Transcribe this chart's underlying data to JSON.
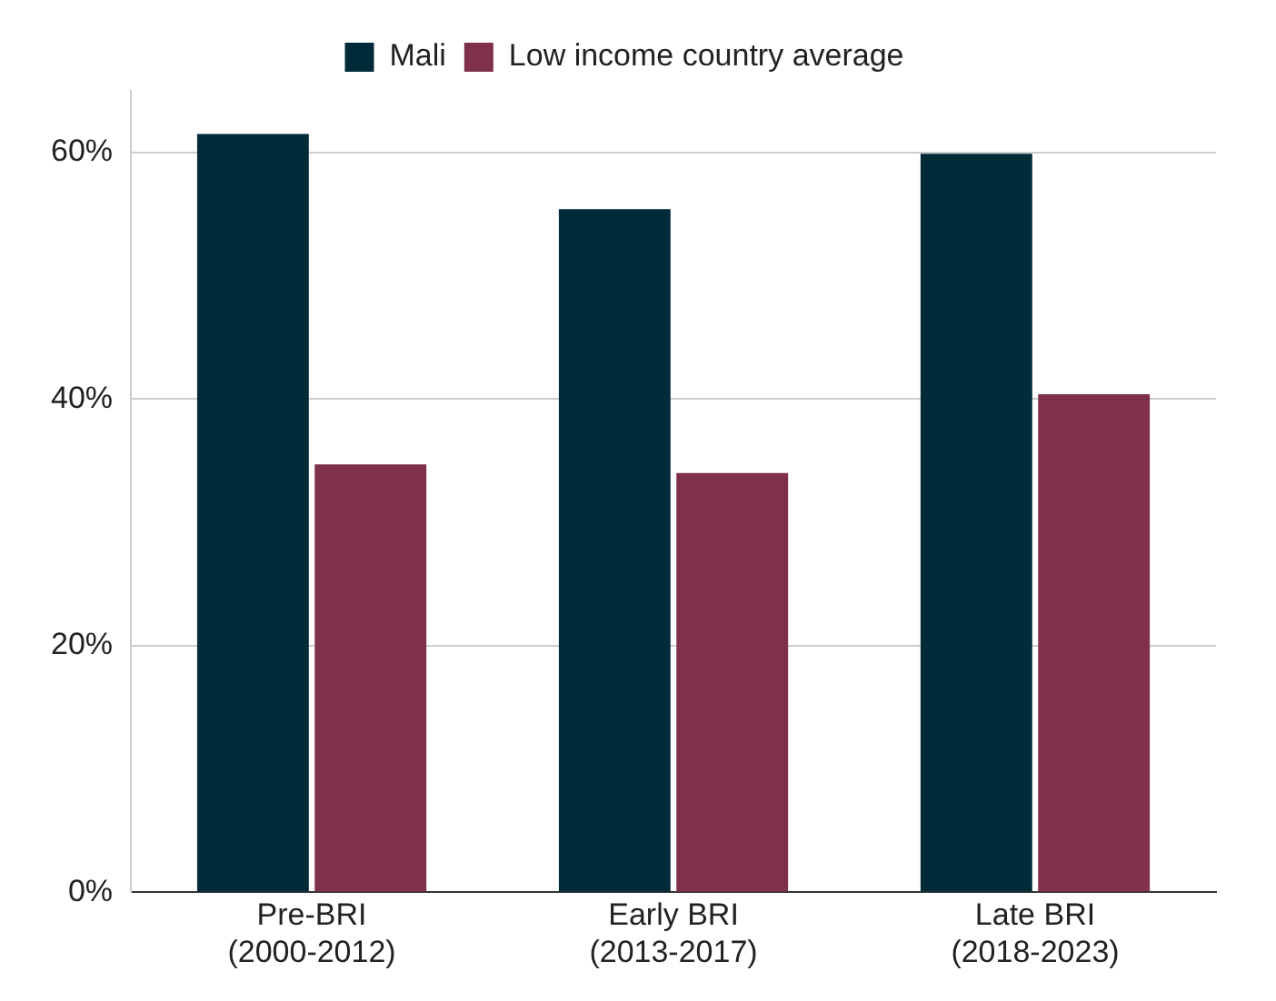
{
  "chart_data": {
    "type": "bar",
    "categories": [
      "Pre-BRI\n(2000-2012)",
      "Early BRI\n(2013-2017)",
      "Late BRI\n(2018-2023)"
    ],
    "series": [
      {
        "name": "Mali",
        "color": "#022b3a",
        "values": [
          61.5,
          55.4,
          59.9
        ]
      },
      {
        "name": "Low income country average",
        "color": "#7f3149",
        "values": [
          34.7,
          34.0,
          40.4
        ]
      }
    ],
    "ylim": [
      0,
      65
    ],
    "yticks": [
      {
        "value": 0,
        "label": "0%"
      },
      {
        "value": 20,
        "label": "20%"
      },
      {
        "value": 40,
        "label": "40%"
      },
      {
        "value": 60,
        "label": "60%"
      }
    ],
    "grid": "y",
    "legend": "top"
  }
}
